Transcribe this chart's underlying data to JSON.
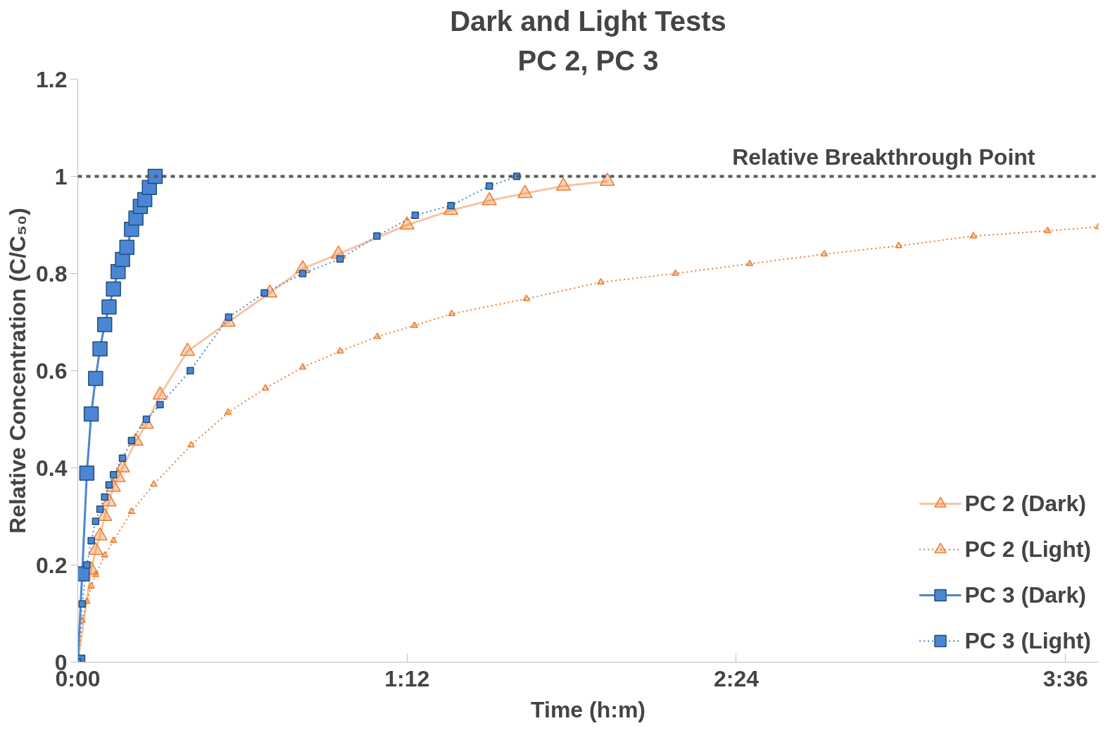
{
  "chart_data": {
    "type": "line",
    "title": "Dark and Light Tests",
    "subtitle": "PC 2, PC 3",
    "xlabel": "Time (h:m)",
    "ylabel": "Relative Concentration (C/C₅₀)",
    "xlim": [
      0,
      3.72
    ],
    "ylim": [
      0,
      1.2
    ],
    "xticks": [
      {
        "value": 0,
        "label": "0:00"
      },
      {
        "value": 1.2,
        "label": "1:12"
      },
      {
        "value": 2.4,
        "label": "2:24"
      },
      {
        "value": 3.6,
        "label": "3:36"
      }
    ],
    "yticks": [
      0,
      0.2,
      0.4,
      0.6,
      0.8,
      1,
      1.2
    ],
    "grid": false,
    "legend": "bottom right",
    "ref_lines": [
      {
        "axis": "y",
        "value": 1,
        "label": "Relative Breakthrough Point",
        "color": "#595959",
        "line_style": "dashed"
      }
    ],
    "series": [
      {
        "name": "PC 2 (Dark)",
        "color": "#ed7d31",
        "marker": "triangle",
        "line_style": "solid",
        "x": [
          0,
          0.049,
          0.065,
          0.081,
          0.098,
          0.114,
          0.13,
          0.147,
          0.163,
          0.212,
          0.25,
          0.3,
          0.4,
          0.548,
          0.7,
          0.82,
          0.95,
          1.2,
          1.36,
          1.5,
          1.63,
          1.77,
          1.93
        ],
        "values": [
          0,
          0.19,
          0.23,
          0.26,
          0.3,
          0.33,
          0.36,
          0.38,
          0.4,
          0.455,
          0.49,
          0.55,
          0.64,
          0.7,
          0.76,
          0.81,
          0.84,
          0.9,
          0.93,
          0.95,
          0.965,
          0.98,
          0.99
        ]
      },
      {
        "name": "PC 2 (Light)",
        "color": "#ed7d31",
        "marker": "triangle",
        "line_style": "dotted",
        "x": [
          0,
          0.016,
          0.033,
          0.049,
          0.065,
          0.098,
          0.13,
          0.196,
          0.277,
          0.413,
          0.548,
          0.684,
          0.82,
          0.956,
          1.092,
          1.227,
          1.363,
          1.635,
          1.906,
          2.178,
          2.449,
          2.721,
          2.992,
          3.264,
          3.535,
          3.72
        ],
        "values": [
          0,
          0.086,
          0.125,
          0.156,
          0.18,
          0.22,
          0.25,
          0.31,
          0.366,
          0.447,
          0.514,
          0.564,
          0.607,
          0.64,
          0.67,
          0.693,
          0.717,
          0.748,
          0.782,
          0.8,
          0.82,
          0.84,
          0.857,
          0.877,
          0.888,
          0.896
        ]
      },
      {
        "name": "PC 3 (Dark)",
        "color": "#4a86d4",
        "marker": "square",
        "line_style": "solid",
        "x": [
          0,
          0.016,
          0.033,
          0.049,
          0.065,
          0.081,
          0.098,
          0.114,
          0.13,
          0.147,
          0.163,
          0.179,
          0.196,
          0.212,
          0.228,
          0.244,
          0.261,
          0.282
        ],
        "values": [
          0,
          0.182,
          0.389,
          0.511,
          0.584,
          0.645,
          0.695,
          0.731,
          0.768,
          0.804,
          0.829,
          0.854,
          0.891,
          0.914,
          0.938,
          0.952,
          0.977,
          1.0
        ]
      },
      {
        "name": "PC 3 (Light)",
        "color": "#4a86d4",
        "marker": "square",
        "line_style": "dotted",
        "x": [
          0,
          0.016,
          0.033,
          0.049,
          0.065,
          0.081,
          0.098,
          0.114,
          0.13,
          0.163,
          0.196,
          0.25,
          0.3,
          0.41,
          0.55,
          0.68,
          0.82,
          0.956,
          1.09,
          1.23,
          1.36,
          1.5,
          1.6
        ],
        "values": [
          0,
          0.12,
          0.2,
          0.25,
          0.29,
          0.315,
          0.34,
          0.365,
          0.386,
          0.42,
          0.456,
          0.5,
          0.53,
          0.6,
          0.71,
          0.76,
          0.8,
          0.83,
          0.877,
          0.92,
          0.94,
          0.98,
          1.0
        ]
      }
    ]
  }
}
